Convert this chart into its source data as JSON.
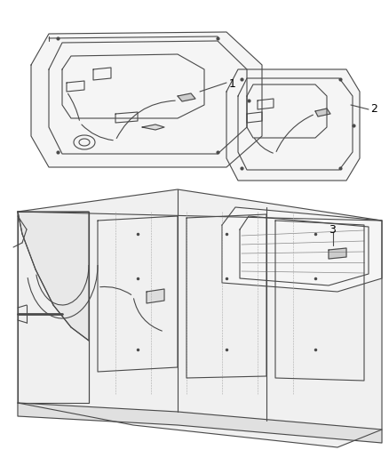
{
  "title": "",
  "background_color": "#ffffff",
  "label1": "1",
  "label2": "2",
  "label3": "3",
  "line_color": "#4a4a4a",
  "line_width": 0.8,
  "fig_width": 4.38,
  "fig_height": 5.33,
  "dpi": 100
}
